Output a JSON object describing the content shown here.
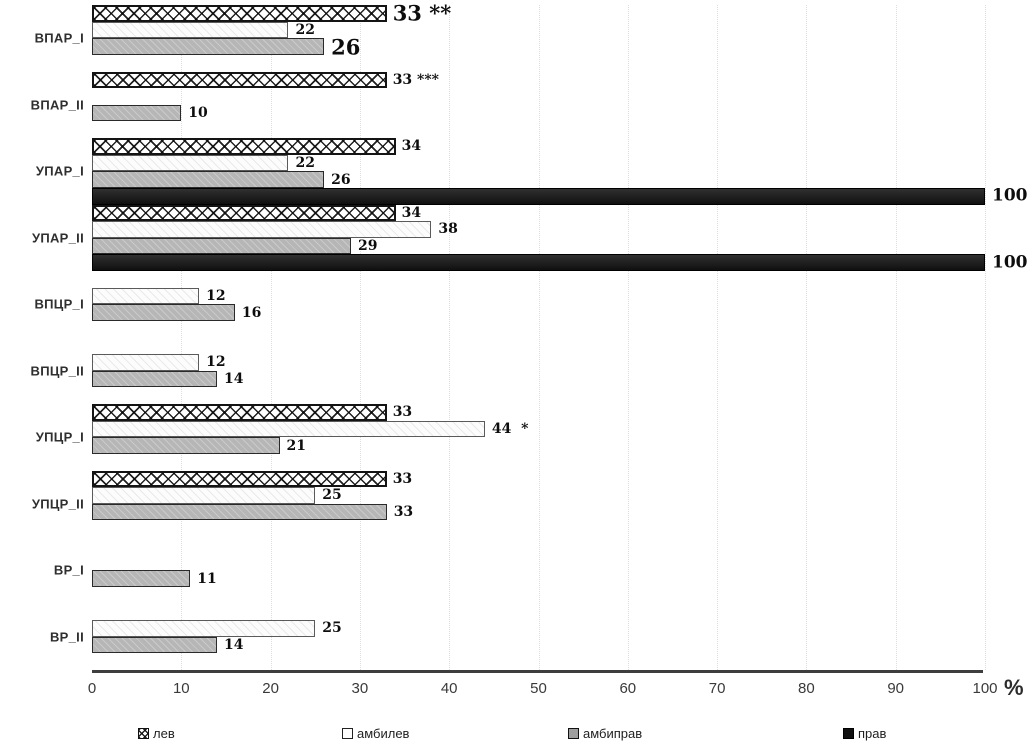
{
  "chart_data": {
    "type": "bar",
    "orientation": "horizontal",
    "title": "",
    "xlim": [
      0,
      100
    ],
    "x_ticks": [
      0,
      10,
      20,
      30,
      40,
      50,
      60,
      70,
      80,
      90,
      100
    ],
    "x_unit_suffix": "%",
    "grid": "dotted-vertical",
    "legend_position": "bottom",
    "series": [
      "лев",
      "амбилев",
      "амбиправ",
      "прав"
    ],
    "series_styles": [
      "crosshatch",
      "white",
      "gray",
      "black"
    ],
    "colors": {
      "crosshatch_line": "#141414",
      "white_fill": "#fcfcfc",
      "gray_fill": "#b6b6b6",
      "black_fill": "#1a1a1a",
      "axis": "#3e3e3e"
    },
    "groups": [
      {
        "category": "ВПАР_I",
        "values": [
          33,
          22,
          26,
          null
        ],
        "labels": [
          "33 **",
          "22",
          "26",
          null
        ],
        "big_labels": [
          0,
          2
        ]
      },
      {
        "category": "ВПАР_II",
        "values": [
          33,
          null,
          10,
          null
        ],
        "labels": [
          "33 ***",
          null,
          "10",
          null
        ]
      },
      {
        "category": "УПАР_I",
        "values": [
          34,
          22,
          26,
          100
        ],
        "labels": [
          "34",
          "22",
          "26",
          "100"
        ]
      },
      {
        "category": "УПАР_II",
        "values": [
          34,
          38,
          29,
          100
        ],
        "labels": [
          "34",
          "38",
          "29",
          "100"
        ]
      },
      {
        "category": "ВПЦР_I",
        "values": [
          null,
          12,
          16,
          null
        ],
        "labels": [
          null,
          "12",
          "16",
          null
        ]
      },
      {
        "category": "ВПЦР_II",
        "values": [
          null,
          12,
          14,
          null
        ],
        "labels": [
          null,
          "12",
          "14",
          null
        ]
      },
      {
        "category": "УПЦР_I",
        "values": [
          33,
          44,
          21,
          null
        ],
        "labels": [
          "33",
          "44  *",
          "21",
          null
        ]
      },
      {
        "category": "УПЦР_II",
        "values": [
          33,
          25,
          33,
          null
        ],
        "labels": [
          "33",
          "25",
          "33",
          null
        ]
      },
      {
        "category": "ВР_I",
        "values": [
          null,
          null,
          11,
          null
        ],
        "labels": [
          null,
          null,
          "11",
          null
        ]
      },
      {
        "category": "ВР_II",
        "values": [
          null,
          25,
          14,
          null
        ],
        "labels": [
          null,
          "25",
          "14",
          null
        ]
      }
    ],
    "legend": [
      {
        "label": "лев"
      },
      {
        "label": "амбилев"
      },
      {
        "label": "амбиправ"
      },
      {
        "label": "прав"
      }
    ]
  }
}
